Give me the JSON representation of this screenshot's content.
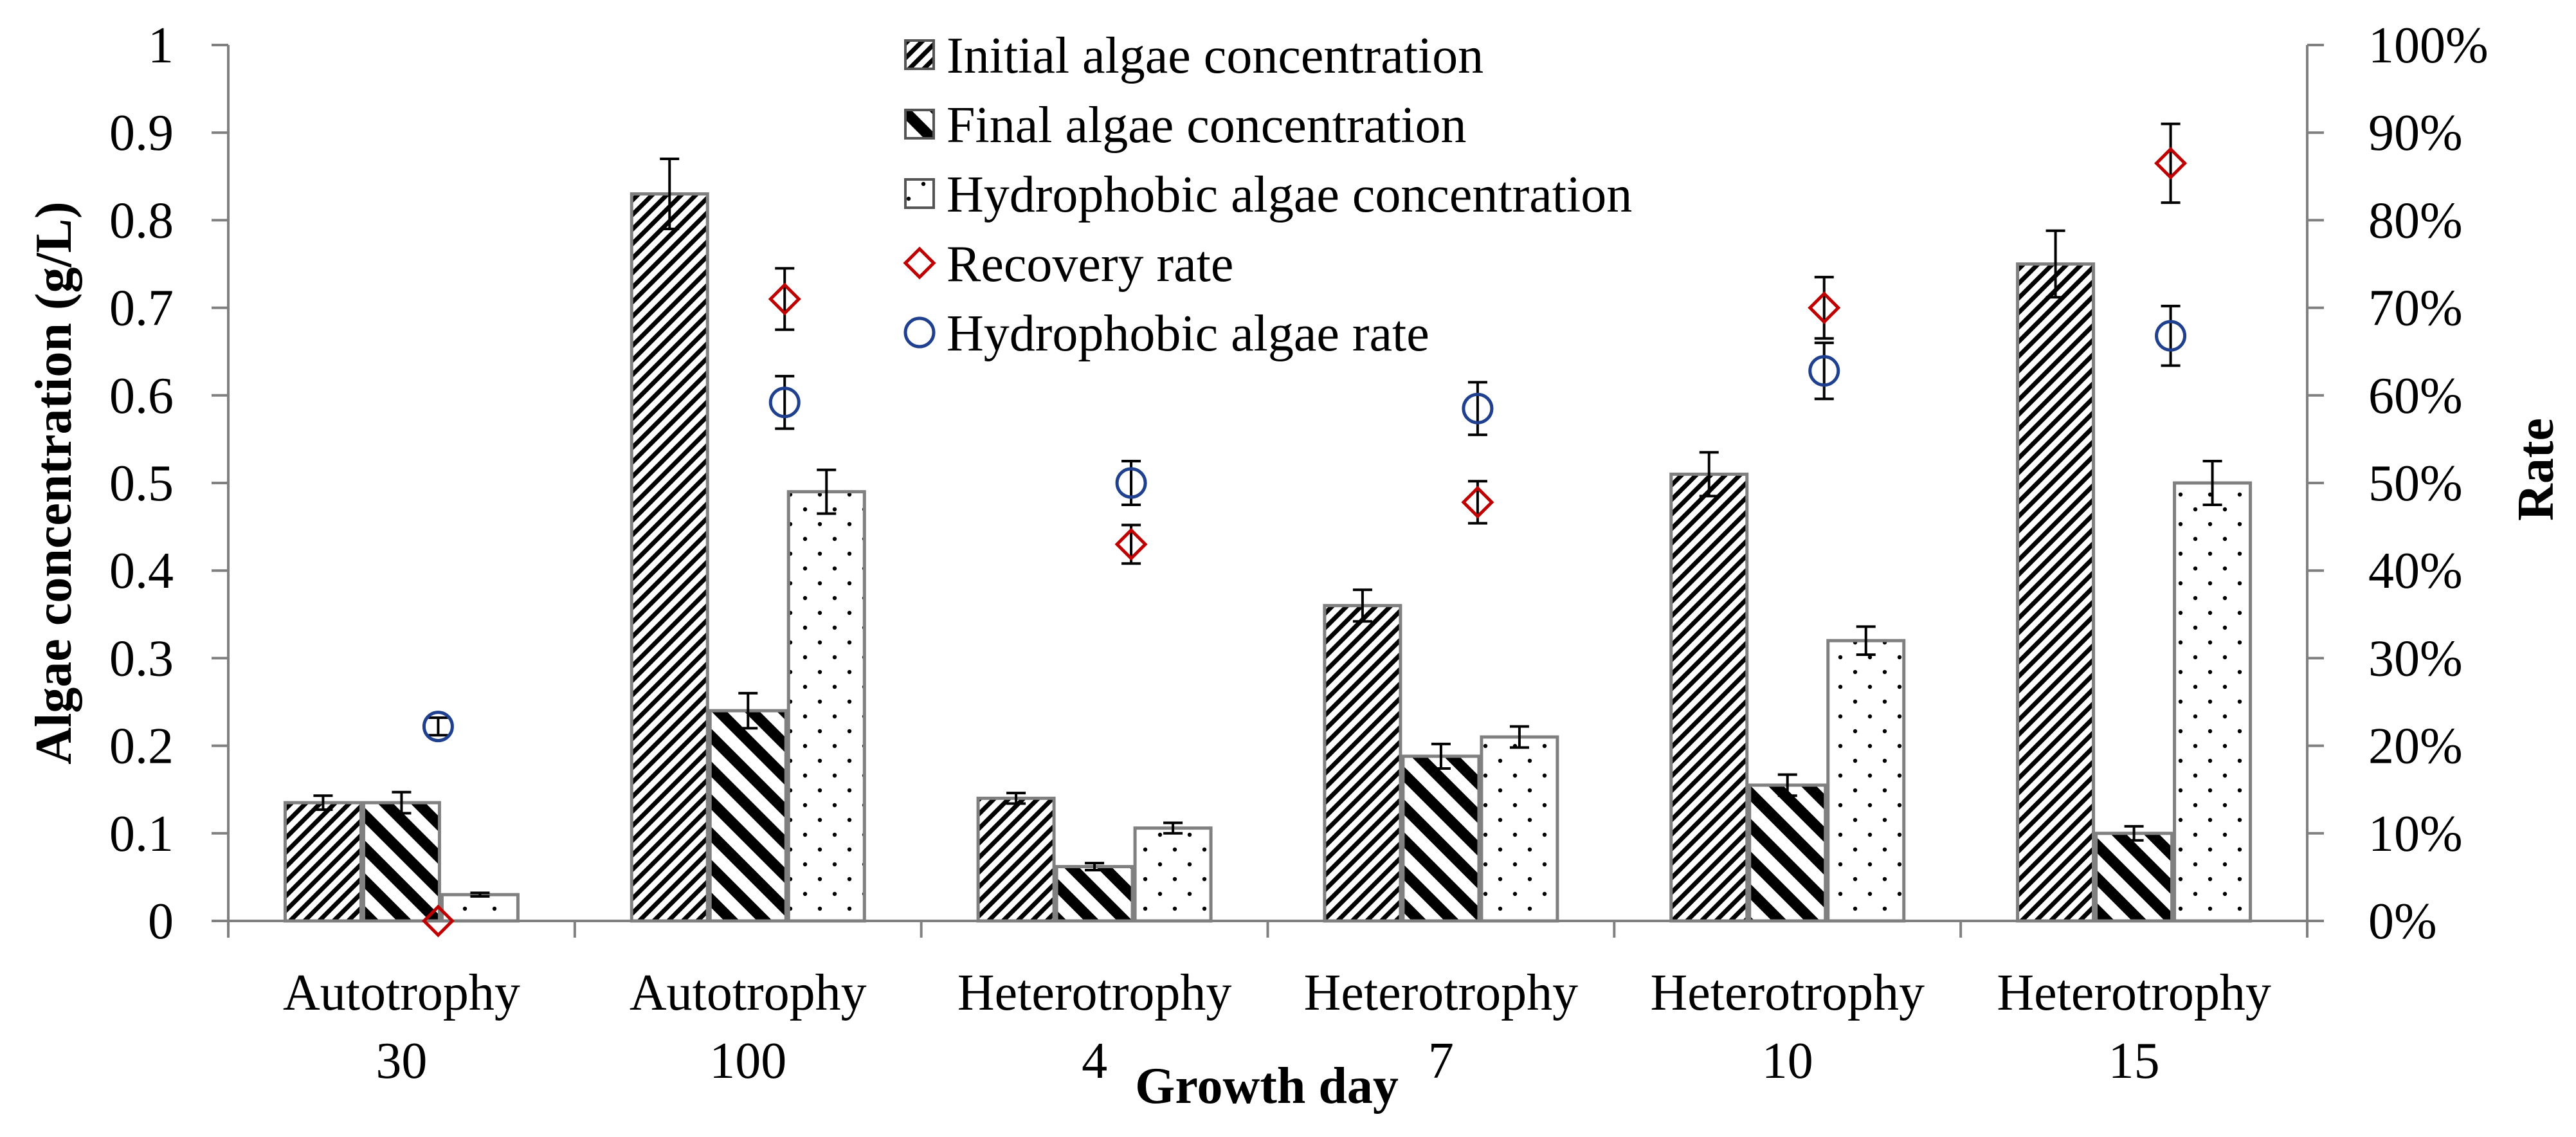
{
  "chart_data": {
    "type": "bar",
    "categories": [
      [
        "Autotrophy",
        "30"
      ],
      [
        "Autotrophy",
        "100"
      ],
      [
        "Heterotrophy",
        "4"
      ],
      [
        "Heterotrophy",
        "7"
      ],
      [
        "Heterotrophy",
        "10"
      ],
      [
        "Heterotrophy",
        "15"
      ]
    ],
    "series": [
      {
        "name": "Initial algae concentration",
        "pattern": "diag-fine",
        "axis": "left",
        "values": [
          0.135,
          0.83,
          0.14,
          0.36,
          0.51,
          0.75
        ],
        "errors": [
          0.008,
          0.04,
          0.006,
          0.018,
          0.025,
          0.038
        ]
      },
      {
        "name": "Final algae concentration",
        "pattern": "diag-coarse",
        "axis": "left",
        "values": [
          0.135,
          0.24,
          0.062,
          0.188,
          0.155,
          0.1
        ],
        "errors": [
          0.012,
          0.02,
          0.004,
          0.014,
          0.012,
          0.008
        ]
      },
      {
        "name": "Hydrophobic algae concentration",
        "pattern": "dots",
        "axis": "left",
        "values": [
          0.03,
          0.49,
          0.106,
          0.21,
          0.32,
          0.5
        ],
        "errors": [
          0.002,
          0.025,
          0.006,
          0.012,
          0.016,
          0.025
        ]
      }
    ],
    "rate_series": [
      {
        "name": "Recovery rate",
        "marker": "diamond",
        "color": "#c00000",
        "axis": "right",
        "values": [
          0.0,
          0.71,
          0.43,
          0.478,
          0.7,
          0.865
        ],
        "errors": [
          0.0,
          0.035,
          0.022,
          0.024,
          0.035,
          0.045
        ]
      },
      {
        "name": "Hydrophobic algae rate",
        "marker": "circle",
        "color": "#1f3f8f",
        "axis": "right",
        "values": [
          0.222,
          0.592,
          0.5,
          0.585,
          0.628,
          0.668
        ],
        "errors": [
          0.01,
          0.03,
          0.025,
          0.03,
          0.032,
          0.034
        ]
      }
    ],
    "xlabel": "Growth day",
    "ylabel": "Algae concentration (g/L)",
    "y2label": "Rate",
    "ylim": [
      0,
      1
    ],
    "y2lim": [
      0,
      1
    ],
    "yticks": [
      "0",
      "0.1",
      "0.2",
      "0.3",
      "0.4",
      "0.5",
      "0.6",
      "0.7",
      "0.8",
      "0.9",
      "1"
    ],
    "y2ticks": [
      "0%",
      "10%",
      "20%",
      "30%",
      "40%",
      "50%",
      "60%",
      "70%",
      "80%",
      "90%",
      "100%"
    ],
    "legend_position": "top-center",
    "grid": false
  }
}
